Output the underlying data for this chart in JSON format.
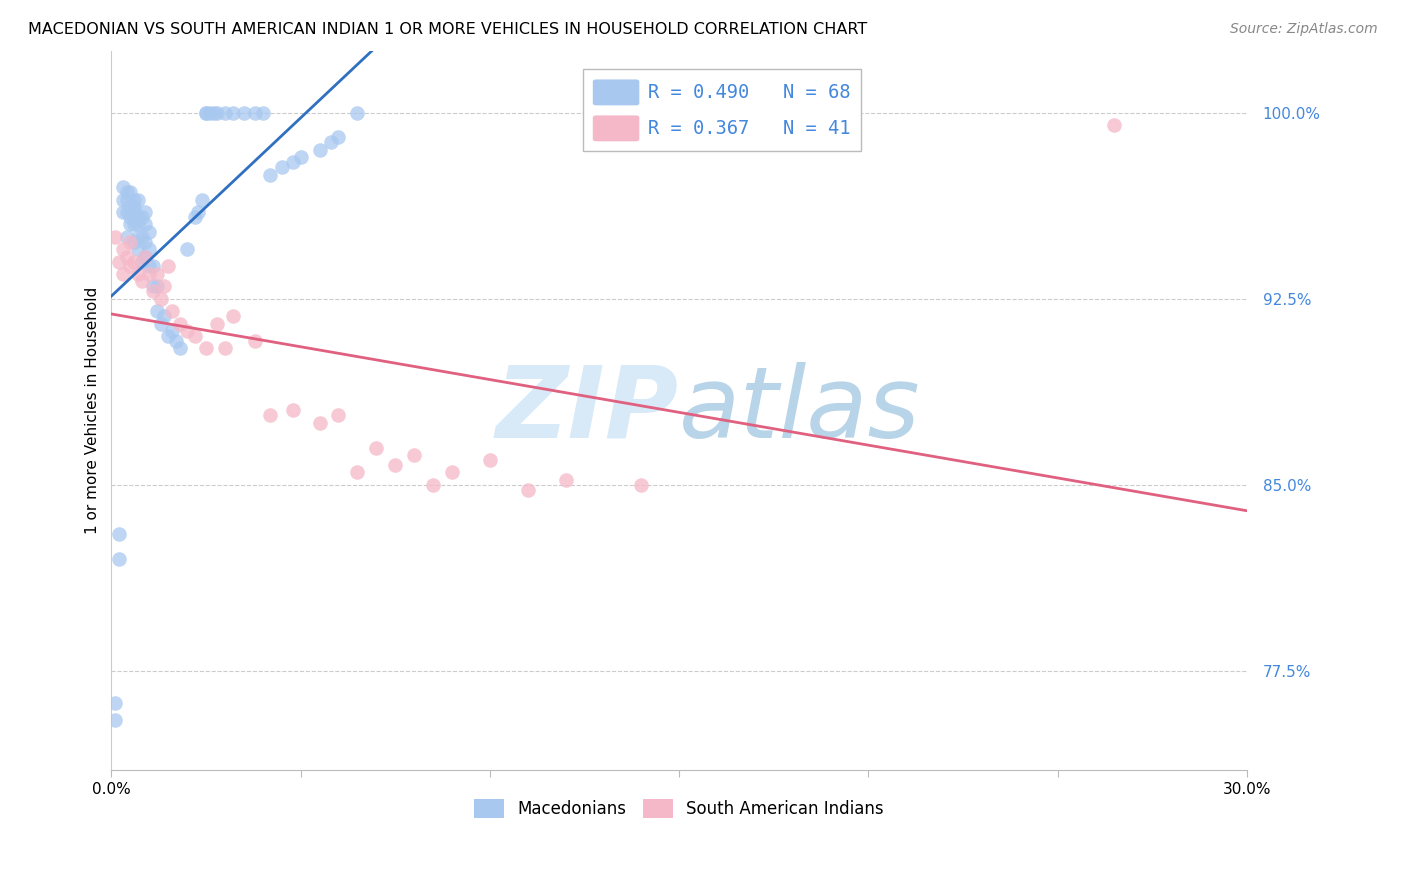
{
  "title": "MACEDONIAN VS SOUTH AMERICAN INDIAN 1 OR MORE VEHICLES IN HOUSEHOLD CORRELATION CHART",
  "source": "Source: ZipAtlas.com",
  "ylabel": "1 or more Vehicles in Household",
  "ytick_labels": [
    "77.5%",
    "85.0%",
    "92.5%",
    "100.0%"
  ],
  "ytick_values": [
    0.775,
    0.85,
    0.925,
    1.0
  ],
  "xlim": [
    0.0,
    0.3
  ],
  "ylim": [
    0.735,
    1.025
  ],
  "legend_blue_text": "R = 0.490   N = 68",
  "legend_pink_text": "R = 0.367   N = 41",
  "legend_macedonians": "Macedonians",
  "legend_sai": "South American Indians",
  "blue_color": "#a8c8f0",
  "pink_color": "#f5b8c8",
  "blue_line_color": "#3070c0",
  "pink_line_color": "#e06080",
  "legend_text_color": "#4488dd",
  "macedonian_x": [
    0.001,
    0.001,
    0.002,
    0.002,
    0.003,
    0.003,
    0.003,
    0.004,
    0.004,
    0.004,
    0.004,
    0.005,
    0.005,
    0.005,
    0.005,
    0.005,
    0.006,
    0.006,
    0.006,
    0.006,
    0.006,
    0.007,
    0.007,
    0.007,
    0.007,
    0.007,
    0.008,
    0.008,
    0.008,
    0.009,
    0.009,
    0.009,
    0.009,
    0.01,
    0.01,
    0.01,
    0.011,
    0.011,
    0.012,
    0.012,
    0.013,
    0.014,
    0.015,
    0.016,
    0.017,
    0.018,
    0.02,
    0.022,
    0.023,
    0.024,
    0.025,
    0.025,
    0.026,
    0.027,
    0.028,
    0.03,
    0.032,
    0.035,
    0.038,
    0.04,
    0.042,
    0.045,
    0.048,
    0.05,
    0.055,
    0.058,
    0.06,
    0.065
  ],
  "macedonian_y": [
    0.755,
    0.762,
    0.82,
    0.83,
    0.96,
    0.965,
    0.97,
    0.95,
    0.96,
    0.965,
    0.968,
    0.955,
    0.958,
    0.96,
    0.962,
    0.968,
    0.948,
    0.955,
    0.96,
    0.962,
    0.965,
    0.945,
    0.95,
    0.955,
    0.958,
    0.965,
    0.94,
    0.95,
    0.958,
    0.942,
    0.948,
    0.955,
    0.96,
    0.938,
    0.945,
    0.952,
    0.93,
    0.938,
    0.92,
    0.93,
    0.915,
    0.918,
    0.91,
    0.912,
    0.908,
    0.905,
    0.945,
    0.958,
    0.96,
    0.965,
    1.0,
    1.0,
    1.0,
    1.0,
    1.0,
    1.0,
    1.0,
    1.0,
    1.0,
    1.0,
    0.975,
    0.978,
    0.98,
    0.982,
    0.985,
    0.988,
    0.99,
    1.0
  ],
  "sai_x": [
    0.001,
    0.002,
    0.003,
    0.003,
    0.004,
    0.005,
    0.005,
    0.006,
    0.007,
    0.008,
    0.009,
    0.01,
    0.011,
    0.012,
    0.013,
    0.014,
    0.015,
    0.016,
    0.018,
    0.02,
    0.022,
    0.025,
    0.028,
    0.03,
    0.032,
    0.038,
    0.042,
    0.048,
    0.055,
    0.06,
    0.065,
    0.07,
    0.075,
    0.08,
    0.085,
    0.09,
    0.1,
    0.11,
    0.12,
    0.14,
    0.265
  ],
  "sai_y": [
    0.95,
    0.94,
    0.945,
    0.935,
    0.942,
    0.948,
    0.938,
    0.94,
    0.935,
    0.932,
    0.942,
    0.935,
    0.928,
    0.935,
    0.925,
    0.93,
    0.938,
    0.92,
    0.915,
    0.912,
    0.91,
    0.905,
    0.915,
    0.905,
    0.918,
    0.908,
    0.878,
    0.88,
    0.875,
    0.878,
    0.855,
    0.865,
    0.858,
    0.862,
    0.85,
    0.855,
    0.86,
    0.848,
    0.852,
    0.85,
    0.995
  ]
}
